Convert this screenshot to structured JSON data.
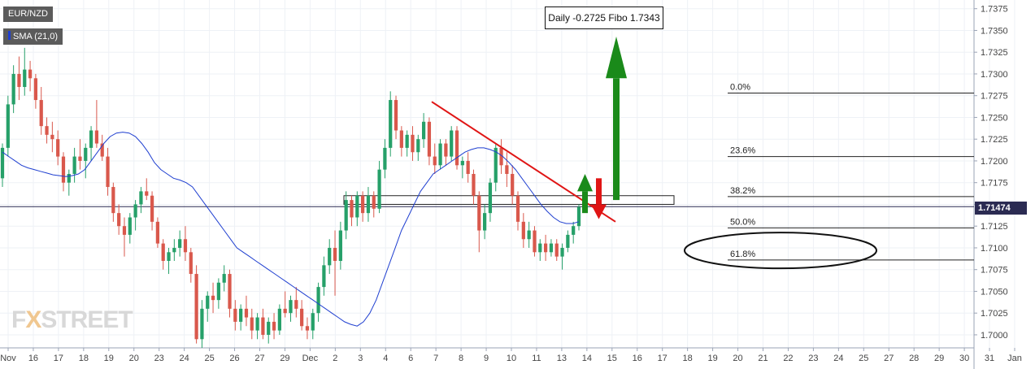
{
  "legend": {
    "symbol": "EUR/NZD",
    "indicator": "SMA (21,0)"
  },
  "annotation": "Daily -0.2725 Fibo 1.7343",
  "current_price": "1.71474",
  "brand": {
    "prefix": "FX",
    "x": "X",
    "rest": "STREET"
  },
  "colors": {
    "bull": "#26a069",
    "bear": "#d9584c",
    "sma": "#1f3fd0",
    "trend": "#e01515",
    "arrow_green": "#1a8a1a",
    "arrow_red": "#e01515",
    "price_line": "#2b2b52",
    "grid": "#eef1f6"
  },
  "chart_data": {
    "type": "candlestick",
    "ylim": [
      1.6985,
      1.7385
    ],
    "y_ticks": [
      "1.7000",
      "1.7025",
      "1.7050",
      "1.7075",
      "1.7100",
      "1.7125",
      "1.7150",
      "1.7175",
      "1.7200",
      "1.7225",
      "1.7250",
      "1.7275",
      "1.7300",
      "1.7325",
      "1.7350",
      "1.7375"
    ],
    "x_ticks": [
      "Nov",
      "16",
      "17",
      "18",
      "19",
      "20",
      "23",
      "24",
      "25",
      "26",
      "27",
      "29",
      "Dec",
      "2",
      "3",
      "4",
      "6",
      "7",
      "8",
      "9",
      "10",
      "11",
      "13",
      "14",
      "15",
      "16",
      "17",
      "18",
      "19",
      "20",
      "21",
      "22",
      "23",
      "24",
      "25",
      "27",
      "28",
      "29",
      "30",
      "31",
      "Jan"
    ],
    "fibonacci": [
      {
        "label": "0.0%",
        "price": 1.7278
      },
      {
        "label": "23.6%",
        "price": 1.7205
      },
      {
        "label": "38.2%",
        "price": 1.7159
      },
      {
        "label": "50.0%",
        "price": 1.7123
      },
      {
        "label": "61.8%",
        "price": 1.7086
      }
    ],
    "candles": [
      {
        "o": 1.718,
        "h": 1.722,
        "l": 1.717,
        "c": 1.7215
      },
      {
        "o": 1.7215,
        "h": 1.7275,
        "l": 1.7205,
        "c": 1.7265
      },
      {
        "o": 1.7265,
        "h": 1.731,
        "l": 1.7255,
        "c": 1.73
      },
      {
        "o": 1.73,
        "h": 1.732,
        "l": 1.727,
        "c": 1.7285
      },
      {
        "o": 1.7285,
        "h": 1.733,
        "l": 1.7275,
        "c": 1.7305
      },
      {
        "o": 1.7305,
        "h": 1.7315,
        "l": 1.728,
        "c": 1.7295
      },
      {
        "o": 1.7295,
        "h": 1.73,
        "l": 1.726,
        "c": 1.727
      },
      {
        "o": 1.727,
        "h": 1.7285,
        "l": 1.723,
        "c": 1.724
      },
      {
        "o": 1.724,
        "h": 1.725,
        "l": 1.722,
        "c": 1.723
      },
      {
        "o": 1.723,
        "h": 1.7245,
        "l": 1.721,
        "c": 1.7225
      },
      {
        "o": 1.7225,
        "h": 1.7235,
        "l": 1.7195,
        "c": 1.7205
      },
      {
        "o": 1.7205,
        "h": 1.721,
        "l": 1.7165,
        "c": 1.7175
      },
      {
        "o": 1.7175,
        "h": 1.719,
        "l": 1.716,
        "c": 1.7185
      },
      {
        "o": 1.7185,
        "h": 1.7215,
        "l": 1.7175,
        "c": 1.7205
      },
      {
        "o": 1.7205,
        "h": 1.7225,
        "l": 1.719,
        "c": 1.72
      },
      {
        "o": 1.72,
        "h": 1.722,
        "l": 1.718,
        "c": 1.7215
      },
      {
        "o": 1.7215,
        "h": 1.724,
        "l": 1.72,
        "c": 1.7235
      },
      {
        "o": 1.7235,
        "h": 1.727,
        "l": 1.7215,
        "c": 1.722
      },
      {
        "o": 1.722,
        "h": 1.723,
        "l": 1.72,
        "c": 1.7205
      },
      {
        "o": 1.7205,
        "h": 1.7215,
        "l": 1.716,
        "c": 1.717
      },
      {
        "o": 1.717,
        "h": 1.7175,
        "l": 1.713,
        "c": 1.714
      },
      {
        "o": 1.714,
        "h": 1.715,
        "l": 1.7115,
        "c": 1.7125
      },
      {
        "o": 1.7125,
        "h": 1.7135,
        "l": 1.709,
        "c": 1.7115
      },
      {
        "o": 1.7115,
        "h": 1.714,
        "l": 1.7105,
        "c": 1.7135
      },
      {
        "o": 1.7135,
        "h": 1.7155,
        "l": 1.712,
        "c": 1.715
      },
      {
        "o": 1.715,
        "h": 1.717,
        "l": 1.714,
        "c": 1.7165
      },
      {
        "o": 1.7165,
        "h": 1.718,
        "l": 1.7155,
        "c": 1.716
      },
      {
        "o": 1.716,
        "h": 1.7165,
        "l": 1.712,
        "c": 1.713
      },
      {
        "o": 1.713,
        "h": 1.7135,
        "l": 1.71,
        "c": 1.7105
      },
      {
        "o": 1.7105,
        "h": 1.711,
        "l": 1.7075,
        "c": 1.7085
      },
      {
        "o": 1.7085,
        "h": 1.71,
        "l": 1.707,
        "c": 1.7095
      },
      {
        "o": 1.7095,
        "h": 1.711,
        "l": 1.7085,
        "c": 1.71
      },
      {
        "o": 1.71,
        "h": 1.712,
        "l": 1.709,
        "c": 1.711
      },
      {
        "o": 1.711,
        "h": 1.7125,
        "l": 1.7085,
        "c": 1.7095
      },
      {
        "o": 1.7095,
        "h": 1.71,
        "l": 1.706,
        "c": 1.707
      },
      {
        "o": 1.707,
        "h": 1.708,
        "l": 1.699,
        "c": 1.6995
      },
      {
        "o": 1.6995,
        "h": 1.704,
        "l": 1.6985,
        "c": 1.703
      },
      {
        "o": 1.703,
        "h": 1.705,
        "l": 1.7015,
        "c": 1.7045
      },
      {
        "o": 1.7045,
        "h": 1.706,
        "l": 1.7025,
        "c": 1.704
      },
      {
        "o": 1.704,
        "h": 1.7065,
        "l": 1.703,
        "c": 1.706
      },
      {
        "o": 1.706,
        "h": 1.708,
        "l": 1.705,
        "c": 1.707
      },
      {
        "o": 1.707,
        "h": 1.7075,
        "l": 1.702,
        "c": 1.703
      },
      {
        "o": 1.703,
        "h": 1.704,
        "l": 1.7005,
        "c": 1.7015
      },
      {
        "o": 1.7015,
        "h": 1.7035,
        "l": 1.7005,
        "c": 1.703
      },
      {
        "o": 1.703,
        "h": 1.7045,
        "l": 1.701,
        "c": 1.702
      },
      {
        "o": 1.702,
        "h": 1.703,
        "l": 1.6995,
        "c": 1.7005
      },
      {
        "o": 1.7005,
        "h": 1.7025,
        "l": 1.6995,
        "c": 1.702
      },
      {
        "o": 1.702,
        "h": 1.703,
        "l": 1.6995,
        "c": 1.7
      },
      {
        "o": 1.7,
        "h": 1.702,
        "l": 1.699,
        "c": 1.7015
      },
      {
        "o": 1.7015,
        "h": 1.7025,
        "l": 1.6995,
        "c": 1.7005
      },
      {
        "o": 1.7005,
        "h": 1.7035,
        "l": 1.7,
        "c": 1.703
      },
      {
        "o": 1.703,
        "h": 1.705,
        "l": 1.702,
        "c": 1.7025
      },
      {
        "o": 1.7025,
        "h": 1.7045,
        "l": 1.7015,
        "c": 1.704
      },
      {
        "o": 1.704,
        "h": 1.7055,
        "l": 1.702,
        "c": 1.703
      },
      {
        "o": 1.703,
        "h": 1.704,
        "l": 1.7005,
        "c": 1.701
      },
      {
        "o": 1.701,
        "h": 1.702,
        "l": 1.6995,
        "c": 1.7005
      },
      {
        "o": 1.7005,
        "h": 1.703,
        "l": 1.6995,
        "c": 1.7025
      },
      {
        "o": 1.7025,
        "h": 1.706,
        "l": 1.7015,
        "c": 1.7055
      },
      {
        "o": 1.7055,
        "h": 1.709,
        "l": 1.7045,
        "c": 1.708
      },
      {
        "o": 1.708,
        "h": 1.711,
        "l": 1.707,
        "c": 1.71
      },
      {
        "o": 1.71,
        "h": 1.712,
        "l": 1.7045,
        "c": 1.7085
      },
      {
        "o": 1.7085,
        "h": 1.713,
        "l": 1.7075,
        "c": 1.712
      },
      {
        "o": 1.712,
        "h": 1.7165,
        "l": 1.711,
        "c": 1.7155
      },
      {
        "o": 1.7155,
        "h": 1.716,
        "l": 1.7125,
        "c": 1.7135
      },
      {
        "o": 1.7135,
        "h": 1.7165,
        "l": 1.7125,
        "c": 1.716
      },
      {
        "o": 1.716,
        "h": 1.7165,
        "l": 1.713,
        "c": 1.714
      },
      {
        "o": 1.714,
        "h": 1.717,
        "l": 1.713,
        "c": 1.716
      },
      {
        "o": 1.716,
        "h": 1.7165,
        "l": 1.7135,
        "c": 1.7145
      },
      {
        "o": 1.7145,
        "h": 1.72,
        "l": 1.714,
        "c": 1.719
      },
      {
        "o": 1.719,
        "h": 1.7225,
        "l": 1.718,
        "c": 1.7215
      },
      {
        "o": 1.7215,
        "h": 1.728,
        "l": 1.7205,
        "c": 1.727
      },
      {
        "o": 1.727,
        "h": 1.7275,
        "l": 1.7225,
        "c": 1.7235
      },
      {
        "o": 1.7235,
        "h": 1.724,
        "l": 1.7205,
        "c": 1.7215
      },
      {
        "o": 1.7215,
        "h": 1.7235,
        "l": 1.7205,
        "c": 1.723
      },
      {
        "o": 1.723,
        "h": 1.724,
        "l": 1.72,
        "c": 1.721
      },
      {
        "o": 1.721,
        "h": 1.723,
        "l": 1.72,
        "c": 1.7225
      },
      {
        "o": 1.7225,
        "h": 1.7255,
        "l": 1.7215,
        "c": 1.7245
      },
      {
        "o": 1.7245,
        "h": 1.725,
        "l": 1.7195,
        "c": 1.7205
      },
      {
        "o": 1.7205,
        "h": 1.722,
        "l": 1.7185,
        "c": 1.7195
      },
      {
        "o": 1.7195,
        "h": 1.7225,
        "l": 1.719,
        "c": 1.722
      },
      {
        "o": 1.722,
        "h": 1.7225,
        "l": 1.7195,
        "c": 1.7205
      },
      {
        "o": 1.7205,
        "h": 1.724,
        "l": 1.72,
        "c": 1.7235
      },
      {
        "o": 1.7235,
        "h": 1.724,
        "l": 1.719,
        "c": 1.7195
      },
      {
        "o": 1.7195,
        "h": 1.7205,
        "l": 1.718,
        "c": 1.72
      },
      {
        "o": 1.72,
        "h": 1.721,
        "l": 1.7175,
        "c": 1.7185
      },
      {
        "o": 1.7185,
        "h": 1.719,
        "l": 1.715,
        "c": 1.716
      },
      {
        "o": 1.716,
        "h": 1.7165,
        "l": 1.7095,
        "c": 1.712
      },
      {
        "o": 1.712,
        "h": 1.715,
        "l": 1.711,
        "c": 1.714
      },
      {
        "o": 1.714,
        "h": 1.718,
        "l": 1.713,
        "c": 1.7175
      },
      {
        "o": 1.7175,
        "h": 1.722,
        "l": 1.7165,
        "c": 1.7215
      },
      {
        "o": 1.7215,
        "h": 1.7225,
        "l": 1.7185,
        "c": 1.7195
      },
      {
        "o": 1.7195,
        "h": 1.721,
        "l": 1.717,
        "c": 1.7185
      },
      {
        "o": 1.7185,
        "h": 1.7195,
        "l": 1.715,
        "c": 1.716
      },
      {
        "o": 1.716,
        "h": 1.7165,
        "l": 1.712,
        "c": 1.713
      },
      {
        "o": 1.713,
        "h": 1.714,
        "l": 1.71,
        "c": 1.711
      },
      {
        "o": 1.711,
        "h": 1.713,
        "l": 1.71,
        "c": 1.712
      },
      {
        "o": 1.712,
        "h": 1.7125,
        "l": 1.709,
        "c": 1.7095
      },
      {
        "o": 1.7095,
        "h": 1.711,
        "l": 1.7085,
        "c": 1.7105
      },
      {
        "o": 1.7105,
        "h": 1.7115,
        "l": 1.7085,
        "c": 1.7095
      },
      {
        "o": 1.7095,
        "h": 1.711,
        "l": 1.709,
        "c": 1.7105
      },
      {
        "o": 1.7105,
        "h": 1.711,
        "l": 1.7085,
        "c": 1.709
      },
      {
        "o": 1.709,
        "h": 1.7105,
        "l": 1.7075,
        "c": 1.71
      },
      {
        "o": 1.71,
        "h": 1.712,
        "l": 1.7095,
        "c": 1.7115
      },
      {
        "o": 1.7115,
        "h": 1.713,
        "l": 1.7105,
        "c": 1.7125
      },
      {
        "o": 1.7125,
        "h": 1.715,
        "l": 1.712,
        "c": 1.7147
      }
    ],
    "sma": [
      1.721,
      1.7205,
      1.72,
      1.7195,
      1.7192,
      1.719,
      1.7188,
      1.7186,
      1.7184,
      1.7183,
      1.7182,
      1.7183,
      1.7185,
      1.719,
      1.72,
      1.721,
      1.722,
      1.7228,
      1.7232,
      1.7233,
      1.7232,
      1.7228,
      1.722,
      1.721,
      1.7198,
      1.719,
      1.7185,
      1.718,
      1.7178,
      1.7175,
      1.717,
      1.716,
      1.715,
      1.714,
      1.713,
      1.712,
      1.711,
      1.71,
      1.7095,
      1.709,
      1.7085,
      1.708,
      1.7075,
      1.707,
      1.7065,
      1.706,
      1.7055,
      1.705,
      1.7045,
      1.704,
      1.7035,
      1.703,
      1.7025,
      1.702,
      1.7015,
      1.7012,
      1.701,
      1.7015,
      1.7025,
      1.704,
      1.706,
      1.708,
      1.71,
      1.712,
      1.7135,
      1.715,
      1.7165,
      1.7175,
      1.7185,
      1.719,
      1.7195,
      1.72,
      1.7205,
      1.721,
      1.7213,
      1.7215,
      1.7215,
      1.7213,
      1.721,
      1.7205,
      1.7198,
      1.719,
      1.718,
      1.717,
      1.716,
      1.715,
      1.7142,
      1.7135,
      1.713,
      1.7128,
      1.7128,
      1.713
    ],
    "trendline": [
      [
        1.7268,
        1.7198
      ]
    ],
    "resistance_box": {
      "low": 1.715,
      "high": 1.716
    },
    "target_arrow": {
      "from": 1.7155,
      "to": 1.7343
    }
  }
}
